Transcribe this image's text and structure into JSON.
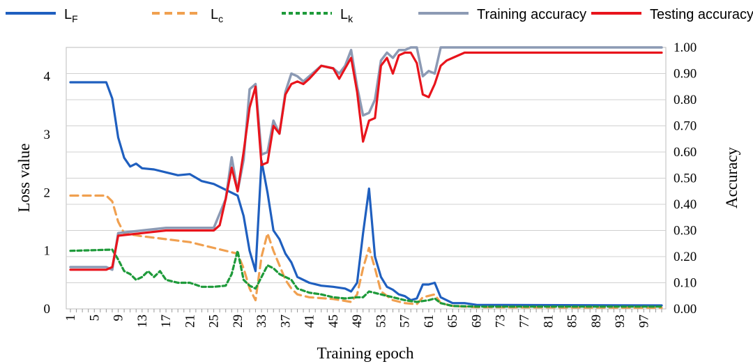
{
  "chart_data": {
    "type": "line",
    "xlabel": "Training epoch",
    "ylabel_left": "Loss value",
    "ylabel_right": "Accuracy",
    "xlim": [
      1,
      100
    ],
    "ylim_left": [
      0,
      4.5
    ],
    "ylim_right": [
      0,
      1.0
    ],
    "x_ticks": [
      "1",
      "5",
      "9",
      "13",
      "17",
      "21",
      "25",
      "29",
      "33",
      "37",
      "41",
      "45",
      "49",
      "53",
      "57",
      "61",
      "65",
      "69",
      "73",
      "77",
      "81",
      "85",
      "89",
      "93",
      "97"
    ],
    "y_left_ticks": [
      "0",
      "1",
      "2",
      "3",
      "4"
    ],
    "y_right_ticks": [
      "0.00",
      "0.10",
      "0.20",
      "0.30",
      "0.40",
      "0.50",
      "0.60",
      "0.70",
      "0.80",
      "0.90",
      "1.00"
    ],
    "grid": true,
    "legend_position": "top",
    "series": [
      {
        "name": "L",
        "subscript": "F",
        "axis": "left",
        "color": "#1f5fbf",
        "dash": "solid",
        "points": [
          [
            1,
            3.9
          ],
          [
            7,
            3.9
          ],
          [
            8,
            3.62
          ],
          [
            9,
            2.95
          ],
          [
            10,
            2.6
          ],
          [
            11,
            2.45
          ],
          [
            12,
            2.5
          ],
          [
            13,
            2.42
          ],
          [
            15,
            2.4
          ],
          [
            17,
            2.35
          ],
          [
            19,
            2.3
          ],
          [
            21,
            2.32
          ],
          [
            23,
            2.2
          ],
          [
            25,
            2.15
          ],
          [
            27,
            2.05
          ],
          [
            29,
            1.95
          ],
          [
            30,
            1.6
          ],
          [
            31,
            1.0
          ],
          [
            32,
            0.65
          ],
          [
            33,
            2.55
          ],
          [
            34,
            2.0
          ],
          [
            35,
            1.35
          ],
          [
            36,
            1.2
          ],
          [
            37,
            0.95
          ],
          [
            38,
            0.8
          ],
          [
            39,
            0.55
          ],
          [
            41,
            0.45
          ],
          [
            43,
            0.4
          ],
          [
            45,
            0.38
          ],
          [
            47,
            0.35
          ],
          [
            48,
            0.3
          ],
          [
            49,
            0.45
          ],
          [
            50,
            1.3
          ],
          [
            51,
            2.07
          ],
          [
            52,
            0.9
          ],
          [
            53,
            0.55
          ],
          [
            54,
            0.38
          ],
          [
            55,
            0.33
          ],
          [
            56,
            0.25
          ],
          [
            57,
            0.22
          ],
          [
            58,
            0.15
          ],
          [
            59,
            0.18
          ],
          [
            60,
            0.42
          ],
          [
            61,
            0.42
          ],
          [
            62,
            0.45
          ],
          [
            63,
            0.2
          ],
          [
            65,
            0.1
          ],
          [
            67,
            0.1
          ],
          [
            69,
            0.07
          ],
          [
            100,
            0.06
          ]
        ]
      },
      {
        "name": "L",
        "subscript": "c",
        "axis": "left",
        "color": "#f0a050",
        "dash": "dashed",
        "points": [
          [
            1,
            1.95
          ],
          [
            7,
            1.95
          ],
          [
            8,
            1.85
          ],
          [
            9,
            1.5
          ],
          [
            10,
            1.3
          ],
          [
            13,
            1.25
          ],
          [
            17,
            1.2
          ],
          [
            21,
            1.15
          ],
          [
            25,
            1.05
          ],
          [
            29,
            0.95
          ],
          [
            30,
            0.7
          ],
          [
            31,
            0.35
          ],
          [
            32,
            0.15
          ],
          [
            33,
            0.9
          ],
          [
            34,
            1.3
          ],
          [
            35,
            1.0
          ],
          [
            36,
            0.75
          ],
          [
            37,
            0.5
          ],
          [
            38,
            0.35
          ],
          [
            39,
            0.25
          ],
          [
            41,
            0.2
          ],
          [
            45,
            0.17
          ],
          [
            48,
            0.12
          ],
          [
            49,
            0.25
          ],
          [
            50,
            0.7
          ],
          [
            51,
            1.05
          ],
          [
            52,
            0.7
          ],
          [
            53,
            0.3
          ],
          [
            55,
            0.15
          ],
          [
            57,
            0.1
          ],
          [
            59,
            0.08
          ],
          [
            60,
            0.2
          ],
          [
            62,
            0.25
          ],
          [
            63,
            0.1
          ],
          [
            65,
            0.05
          ],
          [
            69,
            0.03
          ],
          [
            100,
            0.02
          ]
        ]
      },
      {
        "name": "L",
        "subscript": "k",
        "axis": "left",
        "color": "#1e9a3a",
        "dash": "dotted",
        "points": [
          [
            1,
            1.0
          ],
          [
            8,
            1.02
          ],
          [
            9,
            0.85
          ],
          [
            10,
            0.65
          ],
          [
            11,
            0.6
          ],
          [
            12,
            0.5
          ],
          [
            13,
            0.55
          ],
          [
            14,
            0.65
          ],
          [
            15,
            0.55
          ],
          [
            16,
            0.65
          ],
          [
            17,
            0.5
          ],
          [
            19,
            0.45
          ],
          [
            21,
            0.45
          ],
          [
            23,
            0.38
          ],
          [
            25,
            0.38
          ],
          [
            27,
            0.4
          ],
          [
            28,
            0.6
          ],
          [
            29,
            1.0
          ],
          [
            30,
            0.5
          ],
          [
            31,
            0.4
          ],
          [
            32,
            0.35
          ],
          [
            33,
            0.55
          ],
          [
            34,
            0.75
          ],
          [
            35,
            0.7
          ],
          [
            36,
            0.6
          ],
          [
            37,
            0.55
          ],
          [
            38,
            0.5
          ],
          [
            39,
            0.35
          ],
          [
            41,
            0.28
          ],
          [
            43,
            0.25
          ],
          [
            45,
            0.2
          ],
          [
            47,
            0.18
          ],
          [
            49,
            0.2
          ],
          [
            50,
            0.2
          ],
          [
            51,
            0.3
          ],
          [
            53,
            0.25
          ],
          [
            55,
            0.2
          ],
          [
            57,
            0.15
          ],
          [
            59,
            0.12
          ],
          [
            61,
            0.15
          ],
          [
            62,
            0.18
          ],
          [
            63,
            0.1
          ],
          [
            65,
            0.05
          ],
          [
            69,
            0.04
          ],
          [
            100,
            0.04
          ]
        ]
      },
      {
        "name": "Training accuracy",
        "axis": "right",
        "color": "#8c9ab4",
        "dash": "solid",
        "points": [
          [
            1,
            0.16
          ],
          [
            7,
            0.16
          ],
          [
            8,
            0.15
          ],
          [
            9,
            0.29
          ],
          [
            13,
            0.3
          ],
          [
            17,
            0.31
          ],
          [
            21,
            0.31
          ],
          [
            25,
            0.31
          ],
          [
            27,
            0.42
          ],
          [
            28,
            0.58
          ],
          [
            29,
            0.45
          ],
          [
            30,
            0.57
          ],
          [
            31,
            0.84
          ],
          [
            32,
            0.86
          ],
          [
            33,
            0.59
          ],
          [
            34,
            0.6
          ],
          [
            35,
            0.72
          ],
          [
            36,
            0.67
          ],
          [
            37,
            0.83
          ],
          [
            38,
            0.9
          ],
          [
            39,
            0.89
          ],
          [
            40,
            0.87
          ],
          [
            41,
            0.89
          ],
          [
            43,
            0.93
          ],
          [
            45,
            0.92
          ],
          [
            46,
            0.9
          ],
          [
            47,
            0.93
          ],
          [
            48,
            0.99
          ],
          [
            49,
            0.85
          ],
          [
            50,
            0.74
          ],
          [
            51,
            0.75
          ],
          [
            52,
            0.8
          ],
          [
            53,
            0.95
          ],
          [
            54,
            0.98
          ],
          [
            55,
            0.96
          ],
          [
            56,
            0.99
          ],
          [
            57,
            0.99
          ],
          [
            58,
            1.0
          ],
          [
            59,
            1.0
          ],
          [
            60,
            0.89
          ],
          [
            61,
            0.91
          ],
          [
            62,
            0.9
          ],
          [
            63,
            1.0
          ],
          [
            100,
            1.0
          ]
        ]
      },
      {
        "name": "Testing accuracy",
        "axis": "right",
        "color": "#e8141c",
        "dash": "solid",
        "points": [
          [
            1,
            0.15
          ],
          [
            7,
            0.15
          ],
          [
            8,
            0.16
          ],
          [
            9,
            0.28
          ],
          [
            13,
            0.29
          ],
          [
            17,
            0.3
          ],
          [
            21,
            0.3
          ],
          [
            23,
            0.3
          ],
          [
            25,
            0.3
          ],
          [
            26,
            0.32
          ],
          [
            27,
            0.42
          ],
          [
            28,
            0.54
          ],
          [
            29,
            0.45
          ],
          [
            30,
            0.6
          ],
          [
            31,
            0.77
          ],
          [
            32,
            0.85
          ],
          [
            33,
            0.55
          ],
          [
            34,
            0.56
          ],
          [
            35,
            0.7
          ],
          [
            36,
            0.67
          ],
          [
            37,
            0.82
          ],
          [
            38,
            0.86
          ],
          [
            39,
            0.87
          ],
          [
            40,
            0.86
          ],
          [
            41,
            0.88
          ],
          [
            43,
            0.93
          ],
          [
            45,
            0.92
          ],
          [
            46,
            0.88
          ],
          [
            47,
            0.92
          ],
          [
            48,
            0.96
          ],
          [
            49,
            0.83
          ],
          [
            50,
            0.64
          ],
          [
            51,
            0.72
          ],
          [
            52,
            0.73
          ],
          [
            53,
            0.93
          ],
          [
            54,
            0.96
          ],
          [
            55,
            0.9
          ],
          [
            56,
            0.97
          ],
          [
            57,
            0.98
          ],
          [
            58,
            0.98
          ],
          [
            59,
            0.94
          ],
          [
            60,
            0.82
          ],
          [
            61,
            0.81
          ],
          [
            62,
            0.86
          ],
          [
            63,
            0.93
          ],
          [
            64,
            0.95
          ],
          [
            65,
            0.96
          ],
          [
            67,
            0.98
          ],
          [
            69,
            0.98
          ],
          [
            73,
            0.98
          ],
          [
            77,
            0.98
          ],
          [
            85,
            0.98
          ],
          [
            93,
            0.98
          ],
          [
            97,
            0.98
          ],
          [
            100,
            0.98
          ]
        ]
      }
    ]
  }
}
